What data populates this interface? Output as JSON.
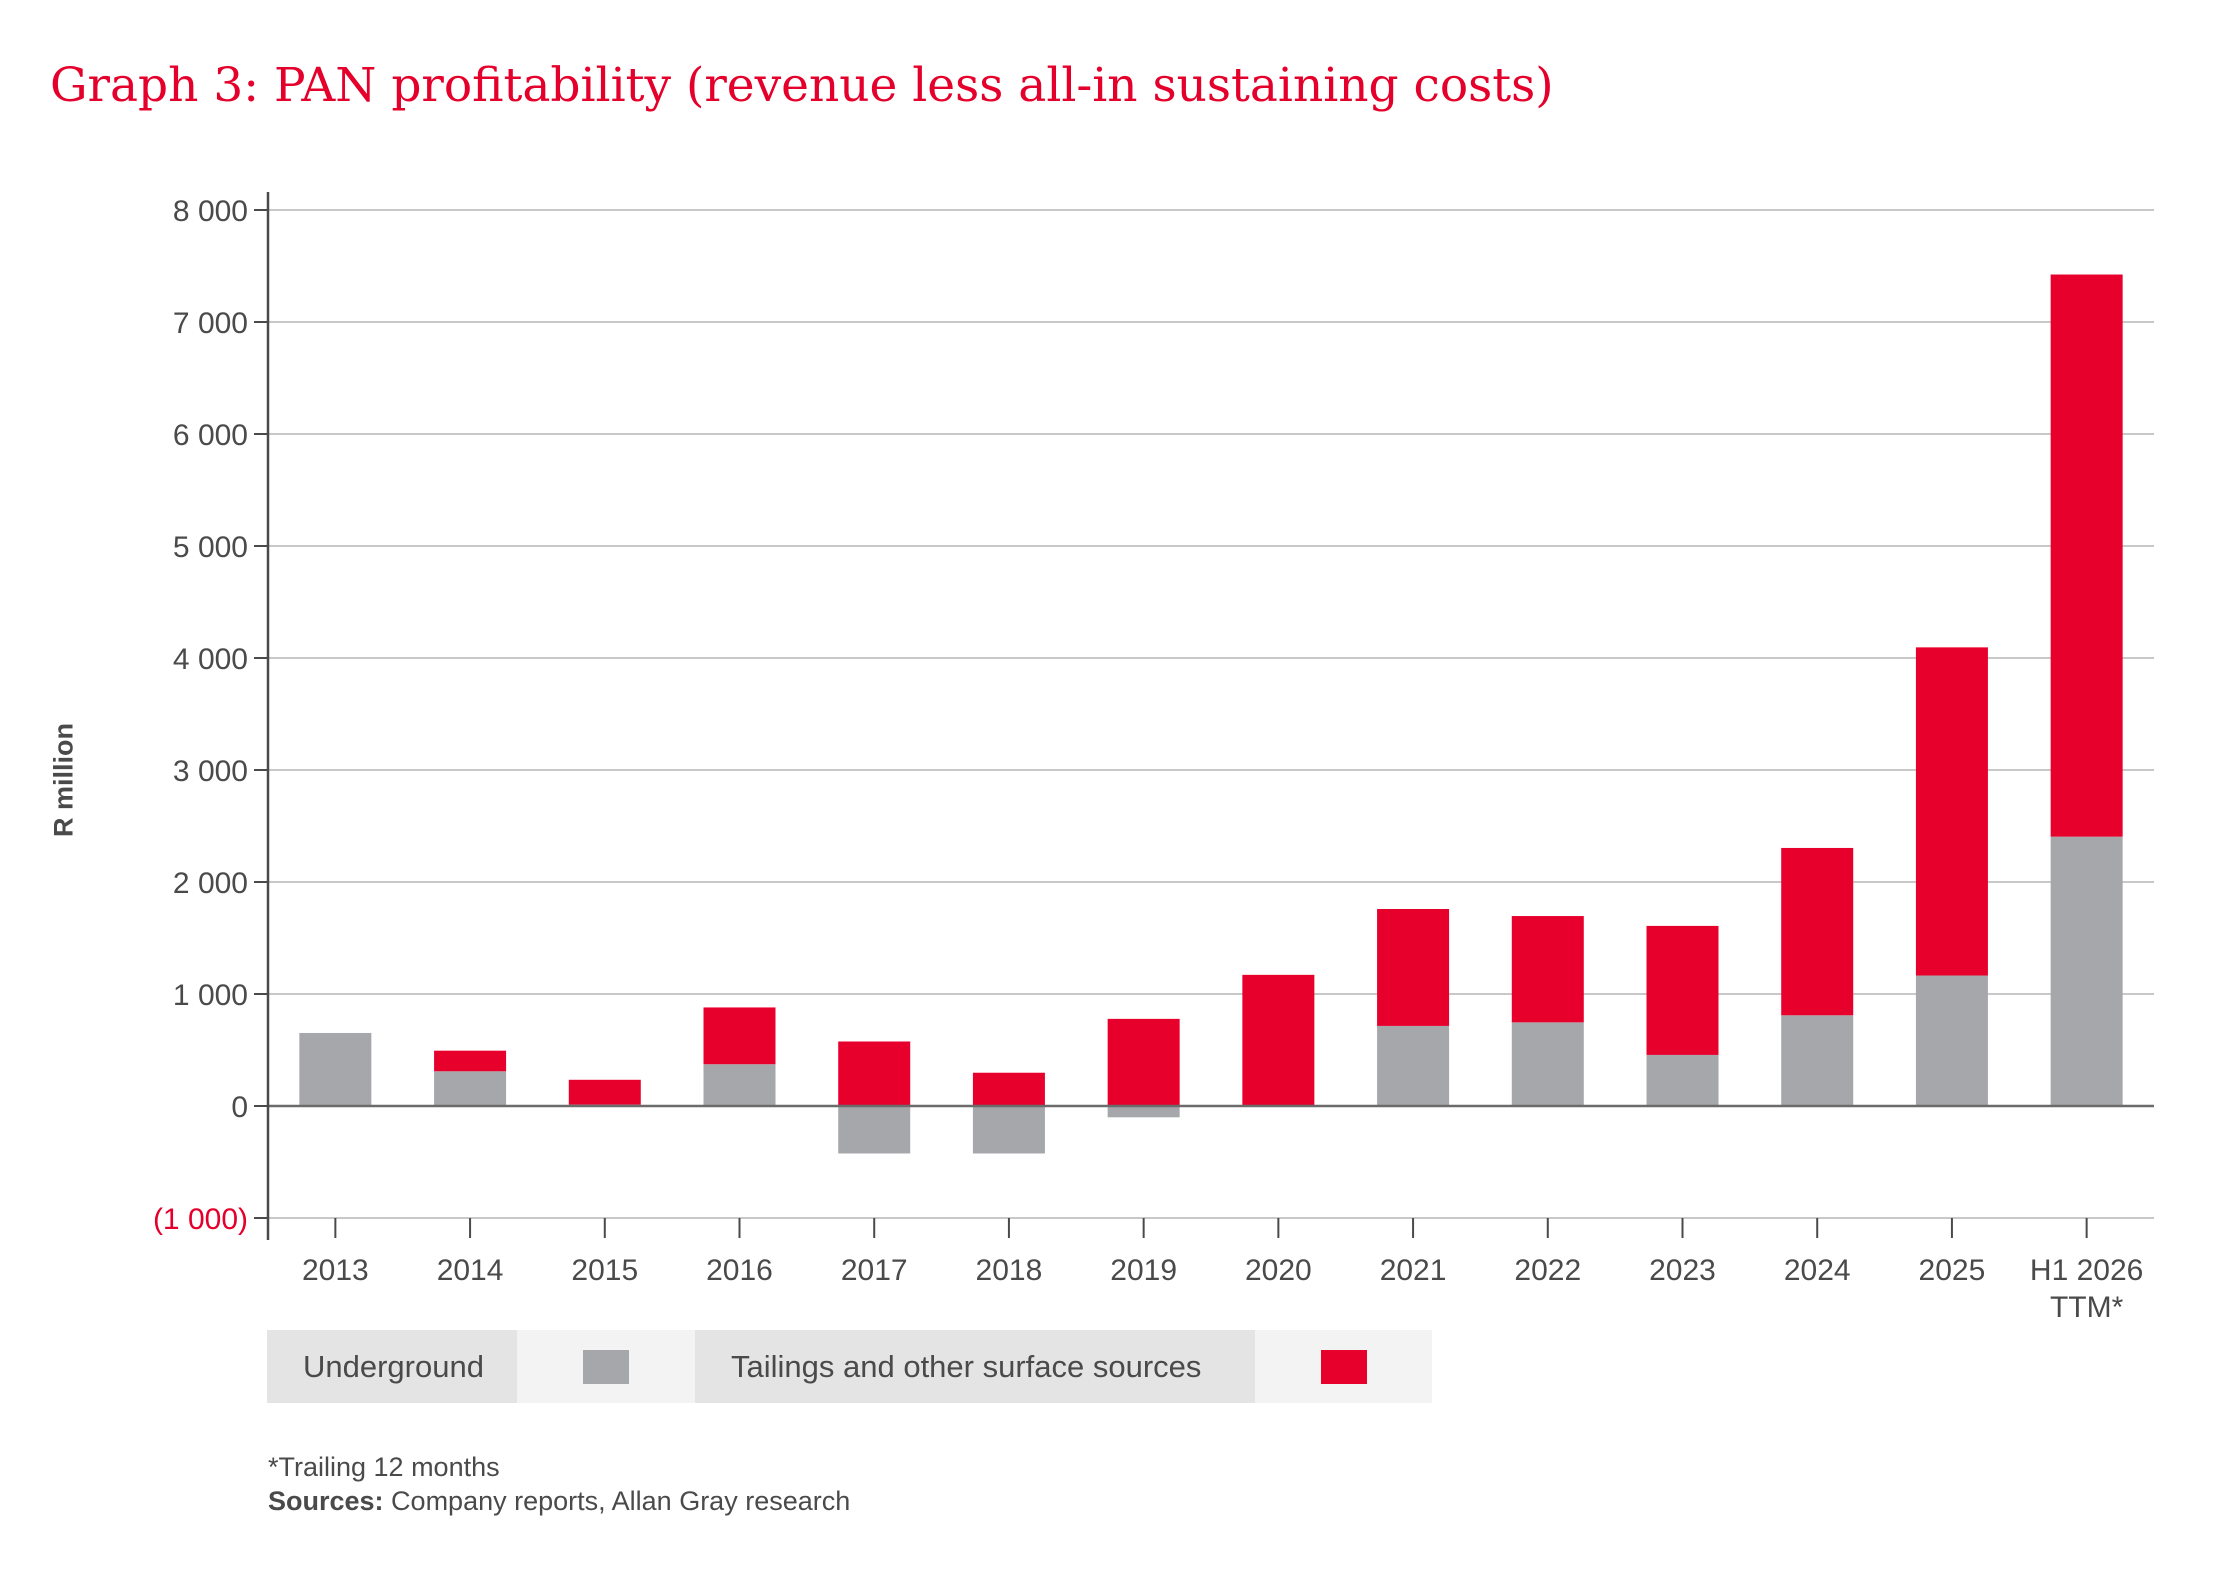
{
  "chart_data": {
    "type": "bar",
    "stacked": true,
    "title": "Graph 3: PAN profitability (revenue less all-in sustaining costs)",
    "ylabel": "R million",
    "xlabel": "",
    "ylim": [
      -1000,
      8000
    ],
    "yticks": [
      {
        "value": 8000,
        "label": "8 000"
      },
      {
        "value": 7000,
        "label": "7 000"
      },
      {
        "value": 6000,
        "label": "6 000"
      },
      {
        "value": 5000,
        "label": "5 000"
      },
      {
        "value": 4000,
        "label": "4 000"
      },
      {
        "value": 3000,
        "label": "3 000"
      },
      {
        "value": 2000,
        "label": "2 000"
      },
      {
        "value": 1000,
        "label": "1 000"
      },
      {
        "value": 0,
        "label": "0"
      },
      {
        "value": -1000,
        "label": "(1 000)",
        "color": "#e4002b"
      }
    ],
    "grid": true,
    "categories": [
      "2013",
      "2014",
      "2015",
      "2016",
      "2017",
      "2018",
      "2019",
      "2020",
      "2021",
      "2022",
      "2023",
      "2024",
      "2025",
      "H1 2026\nTTM*"
    ],
    "series": [
      {
        "name": "Underground",
        "color": "#a6a7aa",
        "values": [
          652,
          310,
          13,
          373,
          -424,
          -424,
          -101,
          -5,
          715,
          747,
          456,
          810,
          1165,
          2405
        ]
      },
      {
        "name": "Tailings and other surface sources",
        "color": "#e8002d",
        "values": [
          0,
          184,
          221,
          507,
          576,
          297,
          778,
          1171,
          1044,
          949,
          1152,
          1494,
          2930,
          5019
        ]
      }
    ],
    "legend": "bottom-left"
  },
  "legend": {
    "underground": "Underground",
    "tailings": "Tailings and other surface sources"
  },
  "footnote": {
    "note": "*Trailing 12 months",
    "sources_label": "Sources:",
    "sources_text": " Company reports, Allan Gray research"
  }
}
